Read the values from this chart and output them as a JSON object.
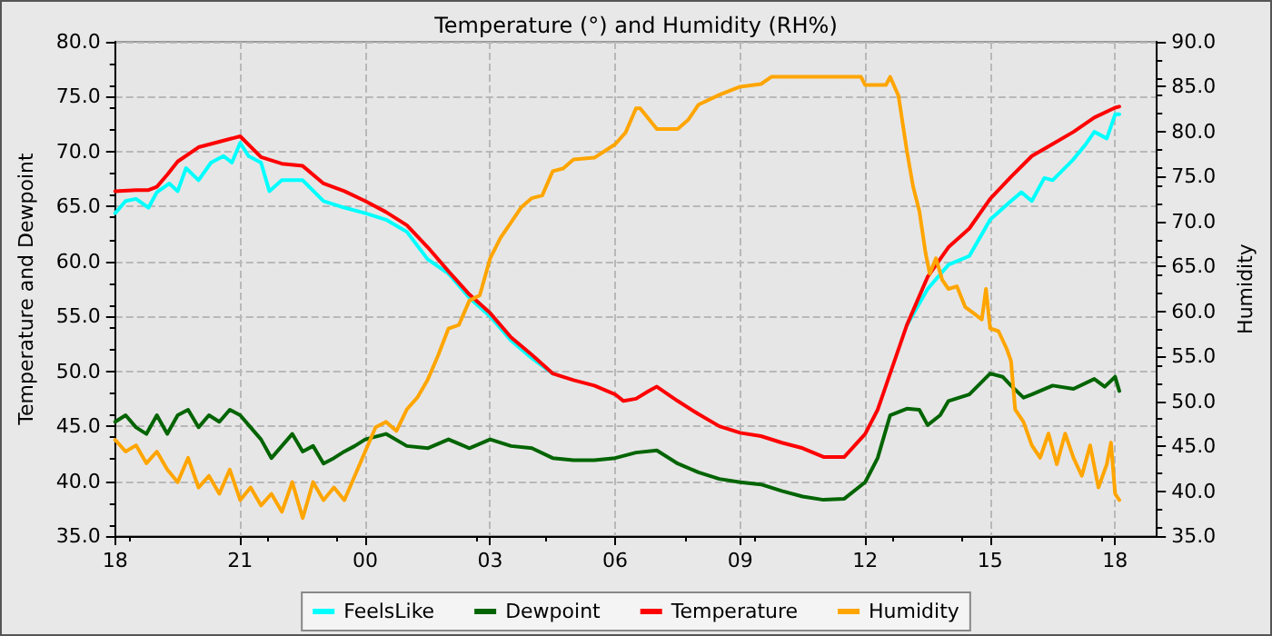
{
  "chart_data": {
    "type": "line",
    "title": "Temperature (°) and Humidity (RH%)",
    "ylabel": "Temperature and Dewpoint",
    "y2label": "Humidity",
    "xlim": [
      18,
      43
    ],
    "xticks": [
      {
        "value": 18,
        "label": "18"
      },
      {
        "value": 21,
        "label": "21"
      },
      {
        "value": 24,
        "label": "00"
      },
      {
        "value": 27,
        "label": "03"
      },
      {
        "value": 30,
        "label": "06"
      },
      {
        "value": 33,
        "label": "09"
      },
      {
        "value": 36,
        "label": "12"
      },
      {
        "value": 39,
        "label": "15"
      },
      {
        "value": 42,
        "label": "18"
      }
    ],
    "ylim": [
      35,
      80
    ],
    "yticks": [
      {
        "value": 35,
        "label": "35.0"
      },
      {
        "value": 40,
        "label": "40.0"
      },
      {
        "value": 45,
        "label": "45.0"
      },
      {
        "value": 50,
        "label": "50.0"
      },
      {
        "value": 55,
        "label": "55.0"
      },
      {
        "value": 60,
        "label": "60.0"
      },
      {
        "value": 65,
        "label": "65.0"
      },
      {
        "value": 70,
        "label": "70.0"
      },
      {
        "value": 75,
        "label": "75.0"
      },
      {
        "value": 80,
        "label": "80.0"
      }
    ],
    "y2lim": [
      35,
      90
    ],
    "y2ticks": [
      {
        "value": 35,
        "label": "35.0"
      },
      {
        "value": 40,
        "label": "40.0"
      },
      {
        "value": 45,
        "label": "45.0"
      },
      {
        "value": 50,
        "label": "50.0"
      },
      {
        "value": 55,
        "label": "55.0"
      },
      {
        "value": 60,
        "label": "60.0"
      },
      {
        "value": 65,
        "label": "65.0"
      },
      {
        "value": 70,
        "label": "70.0"
      },
      {
        "value": 75,
        "label": "75.0"
      },
      {
        "value": 80,
        "label": "80.0"
      },
      {
        "value": 85,
        "label": "85.0"
      },
      {
        "value": 90,
        "label": "90.0"
      }
    ],
    "grid": true,
    "legend": "bottom",
    "marker": "none",
    "line_style": "solid",
    "series": [
      {
        "name": "FeelsLike",
        "color": "#00ffff",
        "x": [
          18,
          18.25,
          18.5,
          18.8,
          19,
          19.3,
          19.5,
          19.7,
          20,
          20.3,
          20.6,
          20.8,
          21,
          21.2,
          21.5,
          21.7,
          22,
          22.5,
          23,
          23.5,
          24,
          24.5,
          25,
          25.5,
          26,
          26.5,
          27,
          27.5,
          28,
          28.5,
          28.6,
          37,
          37.5,
          38,
          38.5,
          39,
          39.5,
          39.75,
          40,
          40.3,
          40.5,
          41,
          41.3,
          41.5,
          41.8,
          42,
          42.1
        ],
        "values": [
          64.4,
          65.5,
          65.7,
          64.9,
          66.3,
          67.1,
          66.4,
          68.5,
          67.4,
          69.0,
          69.6,
          69.0,
          70.8,
          69.6,
          69.0,
          66.4,
          67.4,
          67.4,
          65.5,
          64.9,
          64.4,
          63.8,
          62.7,
          60.2,
          58.9,
          56.7,
          55.0,
          52.8,
          51.2,
          49.8,
          null,
          54.2,
          57.5,
          59.7,
          60.5,
          63.8,
          65.5,
          66.3,
          65.5,
          67.6,
          67.4,
          69.3,
          70.7,
          71.8,
          71.2,
          73.4,
          73.4
        ]
      },
      {
        "name": "Dewpoint",
        "color": "#006400",
        "x": [
          18,
          18.25,
          18.5,
          18.75,
          19,
          19.25,
          19.5,
          19.75,
          20,
          20.25,
          20.5,
          20.75,
          21,
          21.25,
          21.5,
          21.75,
          22,
          22.25,
          22.5,
          22.75,
          23,
          23.25,
          23.5,
          23.75,
          24,
          24.5,
          25,
          25.5,
          26,
          26.5,
          27,
          27.5,
          28,
          28.5,
          29,
          29.5,
          30,
          30.5,
          31,
          31.5,
          32,
          32.5,
          33,
          33.5,
          34,
          34.5,
          35,
          35.5,
          36,
          36.3,
          36.6,
          37,
          37.3,
          37.5,
          37.8,
          38,
          38.5,
          39,
          39.3,
          39.5,
          39.8,
          40,
          40.5,
          41,
          41.5,
          41.75,
          42,
          42.1
        ],
        "values": [
          45.4,
          46.0,
          44.9,
          44.3,
          46.0,
          44.3,
          46.0,
          46.5,
          44.9,
          46.0,
          45.4,
          46.5,
          46.0,
          44.9,
          43.8,
          42.1,
          43.2,
          44.3,
          42.7,
          43.2,
          41.6,
          42.1,
          42.7,
          43.2,
          43.8,
          44.3,
          43.2,
          43.0,
          43.8,
          43.0,
          43.8,
          43.2,
          43.0,
          42.1,
          41.9,
          41.9,
          42.1,
          42.6,
          42.8,
          41.6,
          40.8,
          40.2,
          39.9,
          39.7,
          39.1,
          38.6,
          38.3,
          38.4,
          39.9,
          42.1,
          46.0,
          46.6,
          46.5,
          45.1,
          46.0,
          47.3,
          47.9,
          49.8,
          49.5,
          48.7,
          47.6,
          47.9,
          48.7,
          48.4,
          49.3,
          48.6,
          49.5,
          48.2
        ]
      },
      {
        "name": "Temperature",
        "color": "#ff0000",
        "x": [
          18,
          18.5,
          18.8,
          19,
          19.25,
          19.5,
          20,
          20.5,
          21,
          21.5,
          22,
          22.5,
          23,
          23.5,
          24,
          24.5,
          25,
          25.5,
          26,
          26.5,
          27,
          27.5,
          28,
          28.5,
          29,
          29.5,
          30,
          30.2,
          30.5,
          30.8,
          31,
          31.5,
          32,
          32.5,
          33,
          33.5,
          34,
          34.5,
          35,
          35.5,
          36,
          36.3,
          36.5,
          37,
          37.5,
          38,
          38.5,
          39,
          39.5,
          40,
          40.5,
          41,
          41.5,
          42,
          42.1
        ],
        "values": [
          66.4,
          66.5,
          66.5,
          66.8,
          67.9,
          69.1,
          70.4,
          70.9,
          71.4,
          69.5,
          68.9,
          68.7,
          67.1,
          66.4,
          65.5,
          64.5,
          63.3,
          61.3,
          59.1,
          57.0,
          55.3,
          53.1,
          51.5,
          49.8,
          49.2,
          48.7,
          47.9,
          47.3,
          47.5,
          48.2,
          48.6,
          47.3,
          46.1,
          45.0,
          44.4,
          44.1,
          43.5,
          43.0,
          42.2,
          42.2,
          44.3,
          46.5,
          48.7,
          54.2,
          58.6,
          61.3,
          63.0,
          65.7,
          67.7,
          69.6,
          70.7,
          71.8,
          73.1,
          74.0,
          74.1
        ]
      },
      {
        "name": "Humidity",
        "color": "#ffa500",
        "axis": "y2",
        "x": [
          18,
          18.25,
          18.5,
          18.75,
          19,
          19.25,
          19.5,
          19.75,
          20,
          20.25,
          20.5,
          20.75,
          21,
          21.25,
          21.5,
          21.75,
          22,
          22.25,
          22.5,
          22.75,
          23,
          23.25,
          23.5,
          23.75,
          24,
          24.25,
          24.5,
          24.75,
          25,
          25.25,
          25.5,
          25.75,
          26,
          26.25,
          26.5,
          26.75,
          27,
          27.25,
          27.5,
          27.75,
          28,
          28.25,
          28.5,
          28.75,
          29,
          29.5,
          30,
          30.25,
          30.5,
          30.6,
          31,
          31.5,
          31.75,
          32,
          32.5,
          33,
          33.5,
          33.75,
          35.9,
          36,
          36.5,
          36.6,
          36.8,
          37,
          37.15,
          37.3,
          37.45,
          37.55,
          37.7,
          37.85,
          38,
          38.2,
          38.4,
          38.6,
          38.8,
          38.9,
          39,
          39.2,
          39.4,
          39.5,
          39.6,
          39.8,
          40,
          40.2,
          40.4,
          40.6,
          40.8,
          41,
          41.2,
          41.4,
          41.6,
          41.8,
          41.9,
          42,
          42.1
        ],
        "values": [
          45.7,
          44.4,
          45.1,
          43.1,
          44.4,
          42.4,
          41.0,
          43.7,
          40.4,
          41.7,
          39.7,
          42.4,
          39.0,
          40.4,
          38.4,
          39.7,
          37.7,
          41.0,
          37.0,
          41.0,
          39.0,
          40.4,
          39.0,
          41.7,
          44.4,
          47.1,
          47.7,
          46.7,
          49.1,
          50.4,
          52.4,
          55.1,
          58.1,
          58.5,
          61.2,
          61.8,
          65.9,
          68.2,
          69.9,
          71.6,
          72.6,
          72.9,
          75.6,
          75.9,
          76.9,
          77.1,
          78.6,
          79.9,
          82.6,
          82.6,
          80.3,
          80.3,
          81.3,
          83.0,
          84.1,
          85.0,
          85.3,
          86.1,
          86.1,
          85.2,
          85.2,
          86.1,
          84.0,
          77.9,
          73.9,
          71.2,
          66.5,
          64.2,
          65.9,
          63.5,
          62.5,
          62.8,
          60.5,
          59.8,
          59.1,
          62.5,
          58.1,
          57.8,
          55.8,
          54.5,
          49.1,
          47.7,
          45.1,
          43.7,
          46.4,
          43.0,
          46.4,
          43.7,
          41.7,
          45.1,
          40.4,
          43.0,
          45.4,
          39.7,
          39.0
        ]
      }
    ]
  }
}
